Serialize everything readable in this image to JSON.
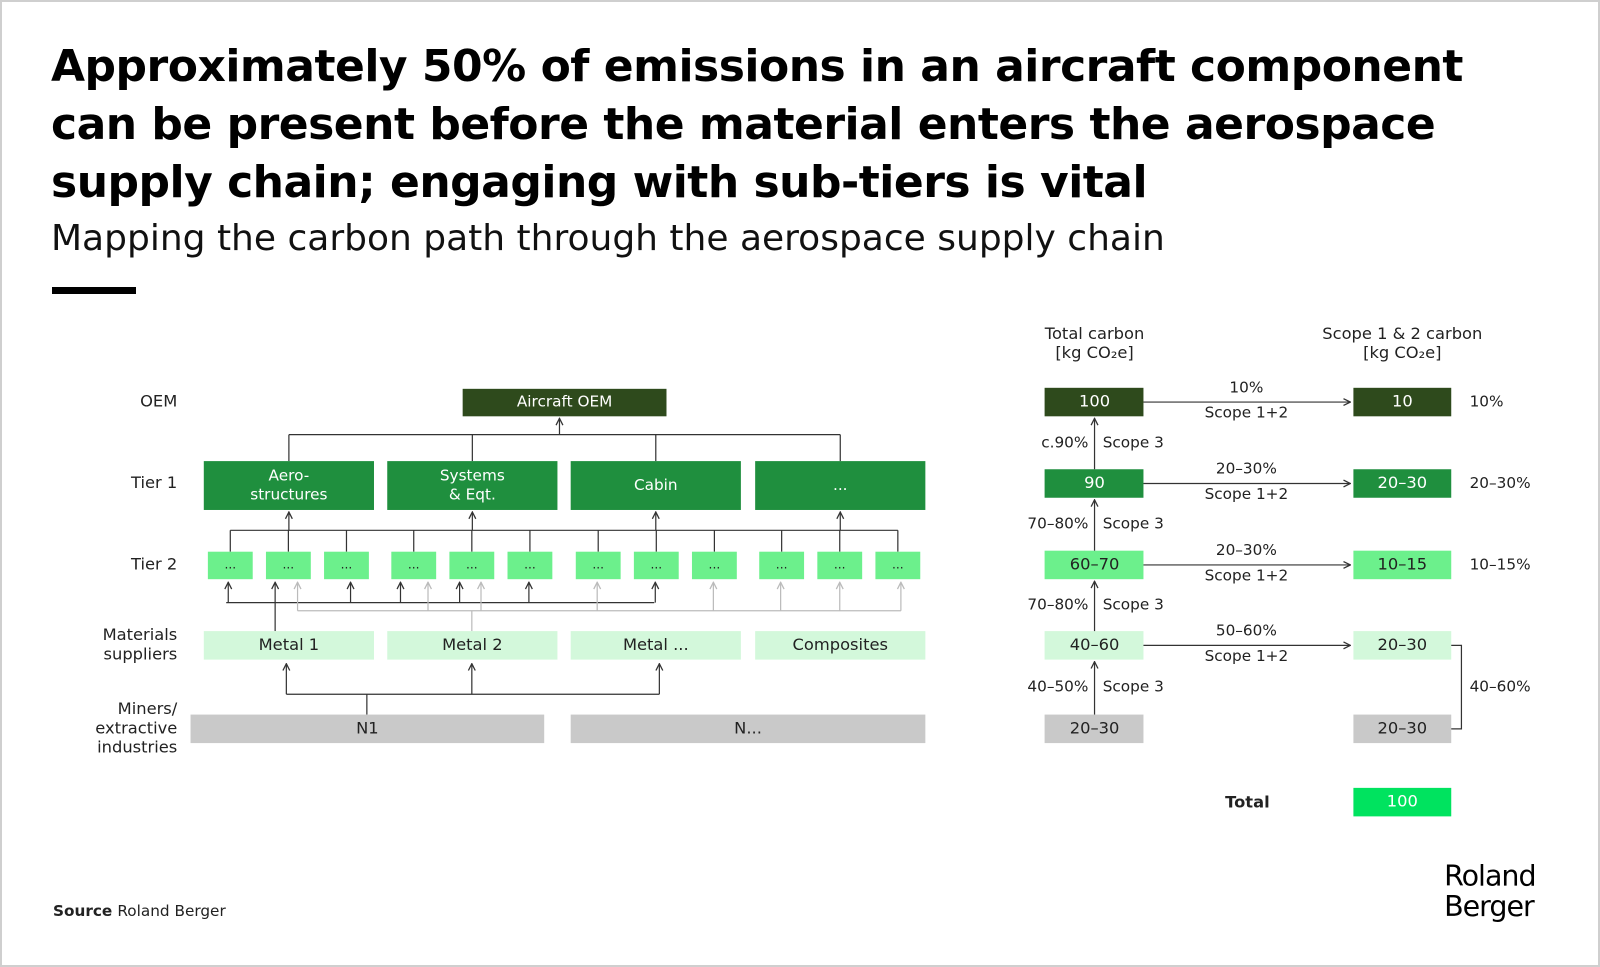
{
  "title": "Approximately 50% of emissions in an aircraft component can be present before the material enters the aerospace supply chain; engaging with sub-tiers is vital",
  "subtitle": "Mapping the carbon path through the aerospace supply chain",
  "levels": [
    [
      "OEM"
    ],
    [
      "Tier 1"
    ],
    [
      "Tier 2"
    ],
    [
      "Materials",
      "suppliers"
    ],
    [
      "Miners/",
      "extractive",
      "industries"
    ]
  ],
  "oem": "Aircraft OEM",
  "tier1": [
    [
      "Aero-",
      "structures"
    ],
    [
      "Systems",
      "& Eqt."
    ],
    [
      "Cabin"
    ],
    [
      "..."
    ]
  ],
  "tier2": [
    "...",
    "...",
    "...",
    "...",
    "...",
    "...",
    "...",
    "...",
    "...",
    "...",
    "...",
    "..."
  ],
  "materials": [
    "Metal 1",
    "Metal 2",
    "Metal ...",
    "Composites"
  ],
  "miners": [
    "N1",
    "N..."
  ],
  "carbon": {
    "total_header": [
      "Total carbon",
      "[kg CO₂e]"
    ],
    "scope_header": [
      "Scope 1 & 2 carbon",
      "[kg CO₂e]"
    ],
    "rows": [
      {
        "total": "100",
        "flow_share": "10%",
        "flow_label": "Scope 1+2",
        "scope12": "10",
        "share": "10%"
      },
      {
        "total": "90",
        "flow_share": "20–30%",
        "flow_label": "Scope 1+2",
        "scope12": "20–30",
        "share": "20–30%"
      },
      {
        "total": "60–70",
        "flow_share": "20–30%",
        "flow_label": "Scope 1+2",
        "scope12": "10–15",
        "share": "10–15%"
      },
      {
        "total": "40–60",
        "flow_share": "50–60%",
        "flow_label": "Scope 1+2",
        "scope12": "20–30"
      },
      {
        "total": "20–30",
        "scope12": "20–30"
      }
    ],
    "scope3": [
      {
        "share": "c.90%",
        "label": "Scope 3"
      },
      {
        "share": "70–80%",
        "label": "Scope 3"
      },
      {
        "share": "70–80%",
        "label": "Scope 3"
      },
      {
        "share": "40–50%",
        "label": "Scope 3"
      }
    ],
    "bracket_share": "40–60%",
    "total_label": "Total",
    "total_value": "100"
  },
  "source_label": "Source",
  "source": "Roland Berger",
  "logo": [
    "Roland",
    "Berger"
  ]
}
